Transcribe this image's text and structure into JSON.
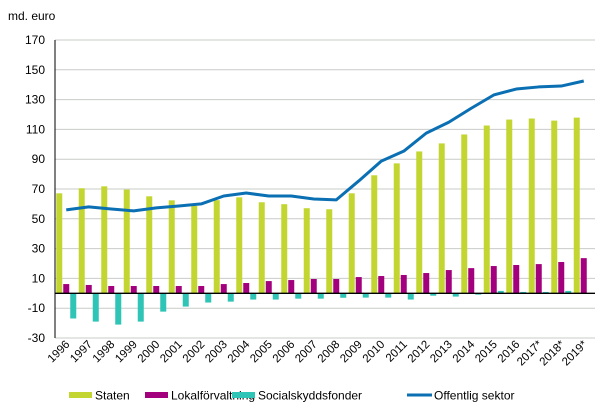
{
  "chart_data": {
    "type": "bar",
    "title": "",
    "ylabel": "md. euro",
    "xlabel": "",
    "ylim": [
      -30,
      170
    ],
    "yticks": [
      170,
      150,
      130,
      110,
      90,
      70,
      50,
      30,
      10,
      -10,
      -30
    ],
    "grid": true,
    "legend": "bottom",
    "categories": [
      "1996",
      "1997",
      "1998",
      "1999",
      "2000",
      "2001",
      "2002",
      "2003",
      "2004",
      "2005",
      "2006",
      "2007",
      "2008",
      "2009",
      "2010",
      "2011",
      "2012",
      "2013",
      "2014",
      "2015",
      "2016",
      "2017*",
      "2018*",
      "2019*"
    ],
    "series": [
      {
        "name": "Staten",
        "kind": "bar",
        "color": "#c3d530",
        "values": [
          67.1,
          70.5,
          71.8,
          69.6,
          65.1,
          62.4,
          58.6,
          62.5,
          64.4,
          61.1,
          59.8,
          57.1,
          56.4,
          67.1,
          79.2,
          87.2,
          95.2,
          100.6,
          106.6,
          112.6,
          116.6,
          117.3,
          115.9,
          117.9
        ]
      },
      {
        "name": "Lokalförvaltning",
        "kind": "bar",
        "color": "#a3007d",
        "values": [
          6.2,
          5.6,
          4.9,
          4.9,
          4.9,
          4.9,
          4.9,
          6.2,
          6.9,
          8.2,
          8.9,
          9.6,
          9.6,
          10.9,
          11.6,
          12.3,
          13.6,
          15.6,
          16.9,
          18.3,
          19.0,
          19.6,
          21.0,
          23.6
        ]
      },
      {
        "name": "Socialskyddsfonder",
        "kind": "bar",
        "color": "#2ec4b6",
        "values": [
          -16.9,
          -19.0,
          -21.0,
          -19.0,
          -12.3,
          -8.9,
          -6.2,
          -5.6,
          -4.2,
          -4.2,
          -3.6,
          -3.6,
          -3.0,
          -2.9,
          -2.9,
          -4.2,
          -1.6,
          -2.2,
          -0.9,
          1.6,
          0.9,
          0.9,
          1.6,
          0.0
        ]
      },
      {
        "name": "Offentlig sektor",
        "kind": "line",
        "color": "#0b6fb3",
        "values": [
          56.0,
          58.0,
          56.6,
          55.3,
          57.3,
          58.6,
          60.0,
          65.3,
          67.3,
          65.3,
          65.3,
          63.3,
          62.7,
          75.4,
          88.7,
          95.4,
          107.5,
          114.8,
          124.2,
          133.1,
          137.1,
          138.5,
          139.1,
          142.5
        ]
      }
    ]
  }
}
